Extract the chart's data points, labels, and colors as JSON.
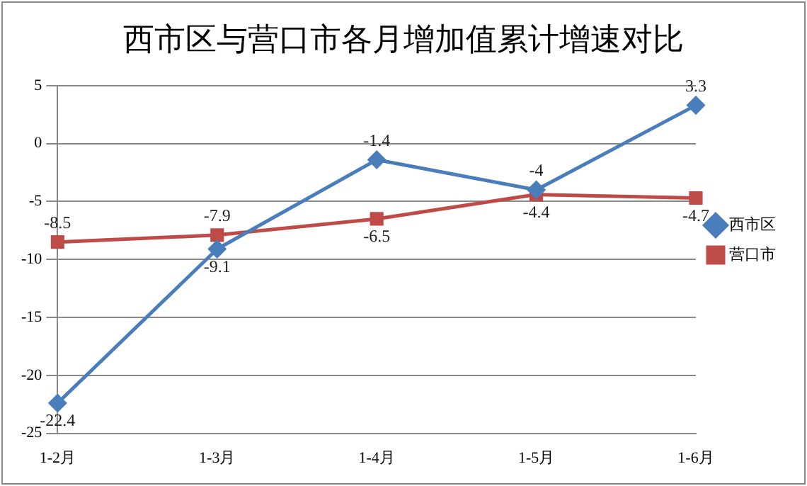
{
  "chart_data": {
    "type": "line",
    "title": "西市区与营口市各月增加值累计增速对比",
    "categories": [
      "1-2月",
      "1-3月",
      "1-4月",
      "1-5月",
      "1-6月"
    ],
    "series": [
      {
        "name": "西市区",
        "color": "#4a7ebb",
        "marker": "diamond",
        "values": [
          -22.4,
          -9.1,
          -1.4,
          -4,
          3.3
        ]
      },
      {
        "name": "营口市",
        "color": "#be4b48",
        "marker": "square",
        "values": [
          -8.5,
          -7.9,
          -6.5,
          -4.4,
          -4.7
        ]
      }
    ],
    "ylim": [
      -25,
      5
    ],
    "yticks": [
      -25,
      -20,
      -15,
      -10,
      -5,
      0,
      5
    ],
    "grid": "y",
    "legend": "right",
    "data_labels": true,
    "line_style": "solid"
  }
}
